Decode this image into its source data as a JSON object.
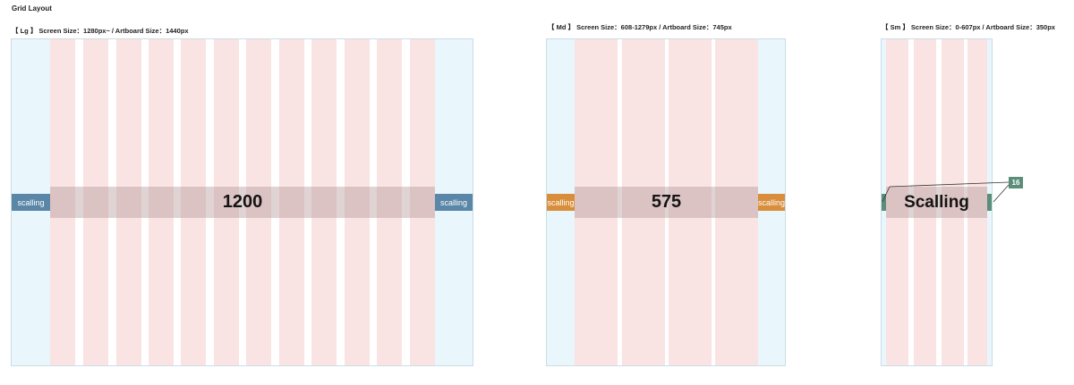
{
  "page": {
    "title": "Grid Layout"
  },
  "panels": [
    {
      "id": "lg",
      "title": "【 Lg 】 Screen Size：1280px~ / Artboard Size：1440px",
      "band_label": "1200",
      "side_label": "scalling",
      "side_color": "#5a86a8"
    },
    {
      "id": "md",
      "title": "【 Md 】 Screen Size：608-1279px / Artboard Size：745px",
      "band_label": "575",
      "side_label": "scalling",
      "side_color": "#d88e3a"
    },
    {
      "id": "sm",
      "title": "【 Sm 】 Screen Size：0-607px / Artboard Size：350px",
      "band_label": "Scalling",
      "callout_label": "16",
      "side_color": "#5b8e79"
    }
  ],
  "colors": {
    "column": "#fae3e3",
    "margin_area": "#e9f6fc",
    "artboard_border": "#c9dde8",
    "band_overlay": "#b29696"
  }
}
